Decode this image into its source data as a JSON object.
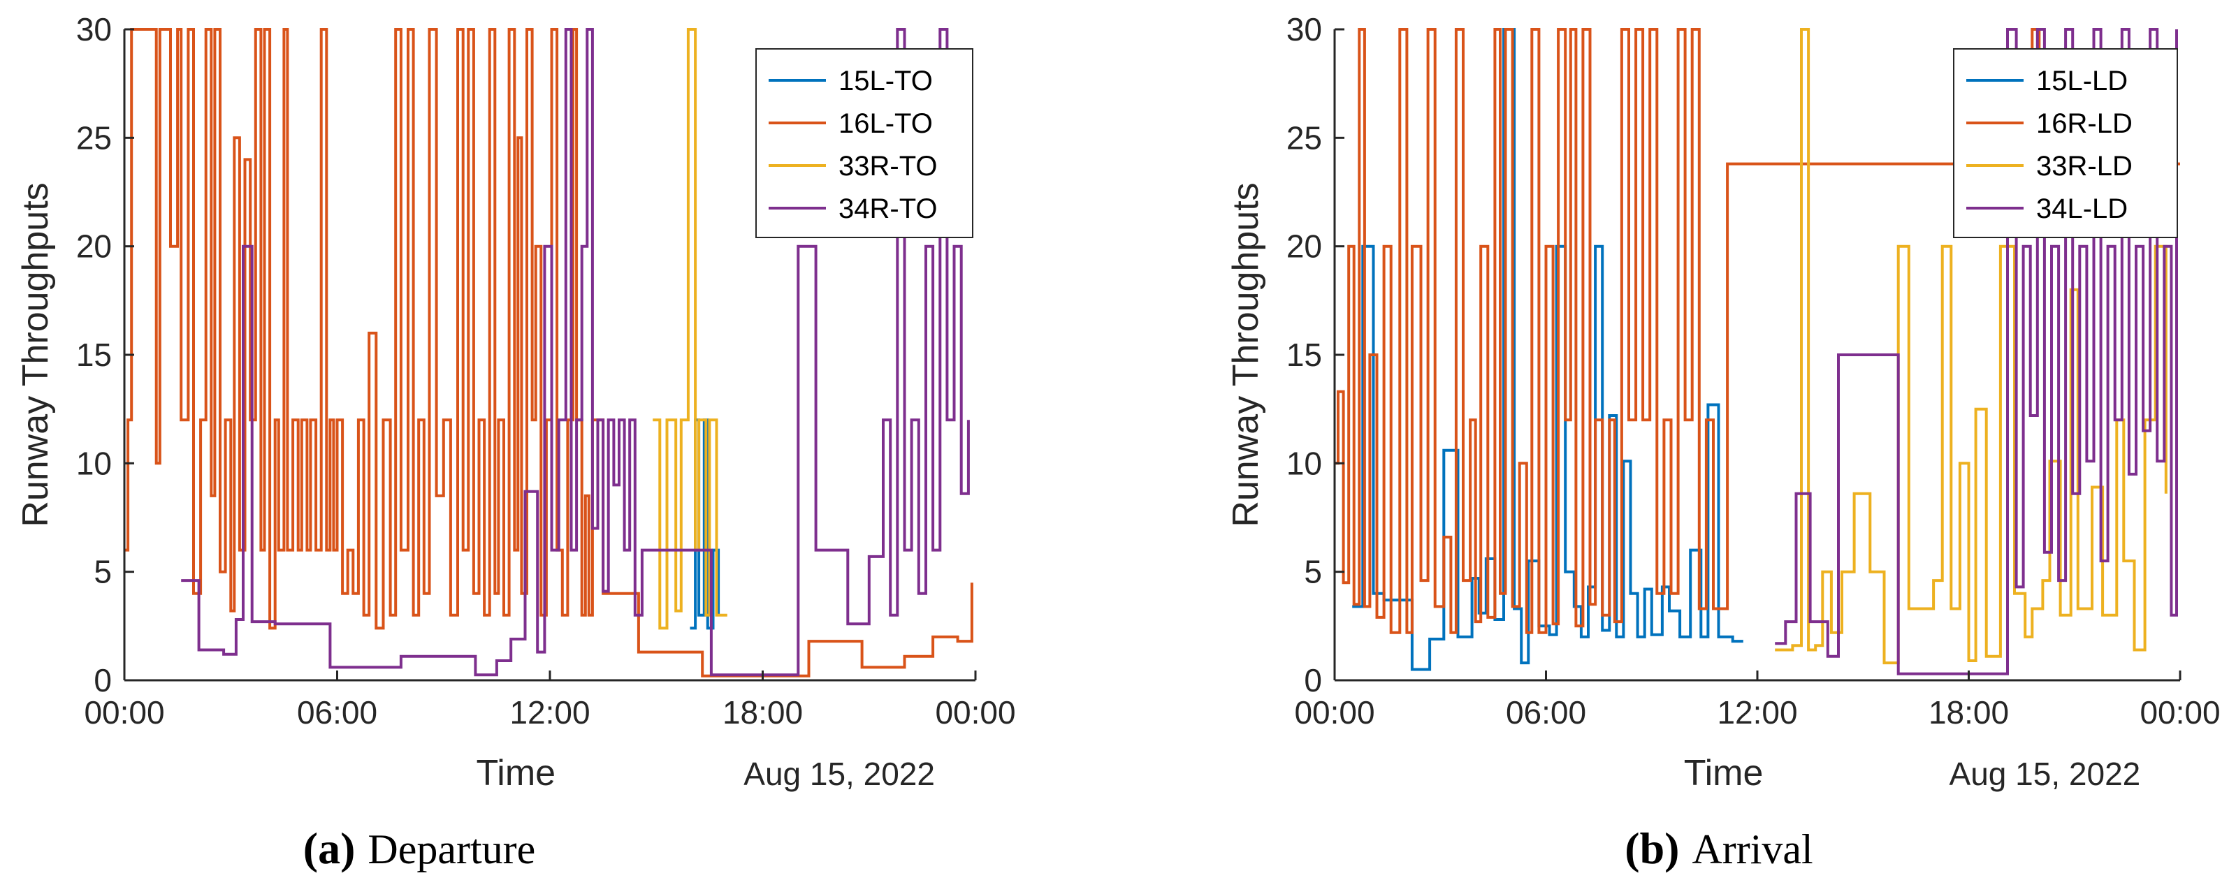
{
  "colors": {
    "c15": "#0072BD",
    "c16": "#D95319",
    "c33": "#EDB120",
    "c34": "#7E2F8E",
    "axis": "#262626"
  },
  "chart_data": [
    {
      "type": "line",
      "step": true,
      "caption_letter": "(a)",
      "caption_text": "Departure",
      "xlabel": "Time",
      "date_label": "Aug 15, 2022",
      "ylabel": "Runway Throughputs",
      "xlim": [
        0,
        24
      ],
      "ylim": [
        0,
        30
      ],
      "xticks": [
        0,
        6,
        12,
        18,
        24
      ],
      "xtick_labels": [
        "00:00",
        "06:00",
        "12:00",
        "18:00",
        "00:00"
      ],
      "yticks": [
        0,
        5,
        10,
        15,
        20,
        25,
        30
      ],
      "ytick_labels": [
        "0",
        "5",
        "10",
        "15",
        "20",
        "25",
        "30"
      ],
      "legend_position": "top-right",
      "series": [
        {
          "name": "15L-TO",
          "color_key": "c15",
          "x": [
            15.95,
            16.1,
            16.2,
            16.35,
            16.45,
            16.6,
            16.75
          ],
          "y": [
            2.4,
            12,
            3,
            12,
            2.4,
            6,
            3
          ]
        },
        {
          "name": "16L-TO",
          "color_key": "c16",
          "x": [
            0.0,
            0.1,
            0.2,
            0.35,
            0.9,
            1.0,
            1.3,
            1.5,
            1.6,
            1.8,
            1.95,
            2.15,
            2.3,
            2.45,
            2.55,
            2.7,
            2.85,
            3.0,
            3.1,
            3.25,
            3.4,
            3.55,
            3.7,
            3.85,
            3.95,
            4.1,
            4.25,
            4.35,
            4.5,
            4.6,
            4.75,
            4.9,
            5.0,
            5.15,
            5.25,
            5.4,
            5.55,
            5.7,
            5.8,
            5.9,
            6.0,
            6.15,
            6.3,
            6.45,
            6.6,
            6.75,
            6.9,
            7.1,
            7.3,
            7.5,
            7.65,
            7.8,
            8.0,
            8.15,
            8.3,
            8.45,
            8.6,
            8.8,
            9.0,
            9.2,
            9.4,
            9.55,
            9.7,
            9.85,
            10.0,
            10.15,
            10.3,
            10.45,
            10.55,
            10.7,
            10.85,
            11.0,
            11.1,
            11.2,
            11.35,
            11.5,
            11.6,
            11.75,
            11.9,
            12.05,
            12.2,
            12.35,
            12.5,
            12.65,
            12.75,
            12.9,
            13.0,
            13.1,
            13.2,
            13.5,
            14.5,
            16.0,
            16.3,
            17.5,
            19.3,
            20.8,
            22.0,
            22.8,
            23.5,
            23.9
          ],
          "y": [
            6,
            12,
            30,
            30,
            10,
            30,
            20,
            30,
            12,
            30,
            4,
            12,
            30,
            8.5,
            30,
            5,
            12,
            3.2,
            25,
            6,
            24,
            12,
            30,
            6,
            30,
            2.4,
            12,
            6,
            30,
            6,
            12,
            6,
            12,
            6,
            12,
            6,
            30,
            6,
            12,
            6,
            12,
            4,
            6,
            4,
            12,
            3,
            16,
            2.4,
            12,
            3,
            30,
            6,
            30,
            3,
            12,
            4,
            30,
            8.5,
            12,
            3,
            30,
            6,
            30,
            4,
            12,
            3,
            30,
            4,
            12,
            3,
            30,
            6,
            25,
            4,
            30,
            12,
            20,
            3,
            12,
            30,
            6,
            3,
            12,
            30,
            12,
            3,
            8.5,
            3,
            12,
            4,
            1.3,
            1.3,
            0.2,
            0.2,
            1.8,
            0.6,
            1.1,
            2.0,
            1.8,
            4.5
          ]
        },
        {
          "name": "33R-TO",
          "color_key": "c33",
          "x": [
            14.9,
            15.1,
            15.3,
            15.55,
            15.7,
            15.9,
            16.1,
            16.2,
            16.4,
            16.5,
            16.7,
            17.0
          ],
          "y": [
            12,
            2.4,
            12,
            3.2,
            12,
            30,
            6,
            12,
            3,
            12,
            3,
            3
          ]
        },
        {
          "name": "34R-TO",
          "color_key": "c34",
          "x": [
            1.6,
            1.9,
            2.1,
            2.8,
            3.15,
            3.35,
            3.6,
            4.0,
            4.25,
            5.8,
            7.8,
            9.9,
            10.5,
            10.9,
            11.3,
            11.65,
            11.85,
            12.05,
            12.25,
            12.45,
            12.6,
            12.75,
            12.9,
            13.05,
            13.2,
            13.35,
            13.5,
            13.65,
            13.8,
            13.95,
            14.1,
            14.25,
            14.4,
            14.6,
            14.8,
            16.3,
            16.55,
            16.8,
            19.0,
            19.5,
            20.4,
            21.0,
            21.4,
            21.6,
            21.8,
            22.0,
            22.2,
            22.4,
            22.6,
            22.8,
            23.0,
            23.2,
            23.4,
            23.6,
            23.8
          ],
          "y": [
            4.6,
            4.6,
            1.4,
            1.2,
            2.8,
            20,
            2.7,
            2.7,
            2.6,
            0.6,
            1.1,
            0.25,
            0.9,
            1.9,
            8.7,
            1.3,
            20,
            6,
            12,
            30,
            6,
            12,
            20,
            30,
            7,
            12,
            4.1,
            12,
            9,
            12,
            6,
            12,
            3,
            6,
            6,
            6,
            0.25,
            0.25,
            20,
            6,
            2.6,
            5.7,
            12,
            3,
            30,
            6,
            12,
            4,
            20,
            6,
            30,
            12,
            20,
            8.6,
            12
          ]
        }
      ]
    },
    {
      "type": "line",
      "step": true,
      "caption_letter": "(b)",
      "caption_text": "Arrival",
      "xlabel": "Time",
      "date_label": "Aug 15, 2022",
      "ylabel": "Runway Throughputs",
      "xlim": [
        0,
        24
      ],
      "ylim": [
        0,
        30
      ],
      "xticks": [
        0,
        6,
        12,
        18,
        24
      ],
      "xtick_labels": [
        "00:00",
        "06:00",
        "12:00",
        "18:00",
        "00:00"
      ],
      "yticks": [
        0,
        5,
        10,
        15,
        20,
        25,
        30
      ],
      "ytick_labels": [
        "0",
        "5",
        "10",
        "15",
        "20",
        "25",
        "30"
      ],
      "legend_position": "top-right",
      "series": [
        {
          "name": "15L-LD",
          "color_key": "c15",
          "x": [
            0.5,
            0.8,
            1.1,
            1.4,
            1.6,
            2.2,
            2.7,
            3.1,
            3.5,
            3.9,
            4.1,
            4.3,
            4.55,
            4.8,
            5.1,
            5.3,
            5.5,
            5.8,
            6.1,
            6.3,
            6.55,
            6.8,
            7.0,
            7.2,
            7.4,
            7.6,
            7.8,
            8.0,
            8.2,
            8.4,
            8.6,
            8.8,
            9.0,
            9.3,
            9.5,
            9.8,
            10.1,
            10.4,
            10.6,
            10.9,
            11.3,
            11.6
          ],
          "y": [
            3.4,
            20,
            4.0,
            3.7,
            3.7,
            0.5,
            1.9,
            10.6,
            2.0,
            4.7,
            3.1,
            5.6,
            2.8,
            30,
            3.3,
            0.8,
            5.5,
            2.5,
            2.1,
            20,
            5.0,
            3.4,
            2.0,
            4.3,
            20,
            2.3,
            12.2,
            2.0,
            10.1,
            4.0,
            2.0,
            4.2,
            2.1,
            4.3,
            3.2,
            2.0,
            6.0,
            2.0,
            12.7,
            2.0,
            1.8,
            1.8
          ]
        },
        {
          "name": "16R-LD",
          "color_key": "c16",
          "x": [
            0.0,
            0.1,
            0.25,
            0.4,
            0.55,
            0.7,
            0.85,
            1.0,
            1.2,
            1.4,
            1.6,
            1.85,
            2.05,
            2.2,
            2.45,
            2.65,
            2.85,
            3.1,
            3.3,
            3.45,
            3.65,
            3.85,
            4.0,
            4.15,
            4.35,
            4.55,
            4.7,
            4.85,
            5.05,
            5.25,
            5.45,
            5.6,
            5.8,
            6.0,
            6.2,
            6.35,
            6.55,
            6.7,
            6.85,
            7.05,
            7.25,
            7.4,
            7.6,
            7.8,
            7.95,
            8.15,
            8.35,
            8.55,
            8.75,
            8.95,
            9.15,
            9.35,
            9.55,
            9.75,
            9.95,
            10.15,
            10.35,
            10.55,
            10.75,
            10.95,
            11.15,
            11.4,
            11.6,
            11.8,
            12.0,
            19.8,
            20.0,
            24.0
          ],
          "y": [
            10,
            13.3,
            4.5,
            20,
            3.5,
            30,
            3.4,
            15,
            2.9,
            20,
            2.2,
            30,
            2.2,
            20,
            4.6,
            30,
            3.4,
            6.6,
            2.2,
            30,
            4.6,
            12,
            2.7,
            20,
            2.9,
            30,
            4.0,
            30,
            3.4,
            10,
            2.2,
            30,
            2.2,
            20,
            2.6,
            30,
            12,
            30,
            2.5,
            30,
            3.5,
            12,
            3.0,
            12,
            2.7,
            30,
            12,
            30,
            12,
            30,
            4.0,
            12,
            4.0,
            30,
            12,
            30,
            3.3,
            12,
            3.3,
            3.3,
            23.8,
            23.8,
            23.8,
            23.8,
            23.8,
            30,
            23.8,
            23.8
          ]
        },
        {
          "name": "33R-LD",
          "color_key": "c33",
          "x": [
            12.5,
            13.0,
            13.25,
            13.45,
            13.65,
            13.85,
            14.1,
            14.4,
            14.75,
            15.2,
            15.6,
            16.0,
            16.3,
            17.0,
            17.25,
            17.5,
            17.75,
            18.0,
            18.2,
            18.5,
            18.9,
            19.3,
            19.6,
            19.8,
            20.1,
            20.3,
            20.6,
            20.9,
            21.1,
            21.5,
            21.8,
            22.2,
            22.4,
            22.7,
            23.0,
            23.3,
            23.6
          ],
          "y": [
            1.4,
            1.6,
            30,
            1.4,
            1.6,
            5.0,
            2.2,
            5.0,
            8.6,
            5.0,
            0.8,
            20,
            3.3,
            4.6,
            20,
            3.3,
            10,
            0.9,
            12.5,
            1.1,
            20,
            4.0,
            2.0,
            3.3,
            4.6,
            10.1,
            3.0,
            18,
            3.3,
            8.9,
            3.0,
            12,
            5.5,
            1.4,
            12,
            20,
            8.6
          ]
        },
        {
          "name": "34L-LD",
          "color_key": "c34",
          "x": [
            12.5,
            12.8,
            13.1,
            13.5,
            14.0,
            14.3,
            15.1,
            16.0,
            16.5,
            17.5,
            18.0,
            19.1,
            19.35,
            19.55,
            19.75,
            19.95,
            20.15,
            20.35,
            20.55,
            20.75,
            20.95,
            21.15,
            21.35,
            21.55,
            21.75,
            21.95,
            22.15,
            22.35,
            22.55,
            22.75,
            22.95,
            23.15,
            23.35,
            23.55,
            23.75,
            23.9
          ],
          "y": [
            1.7,
            2.7,
            8.6,
            2.7,
            1.1,
            15,
            15,
            0.3,
            0.3,
            0.3,
            0.3,
            30,
            4.3,
            20,
            12.2,
            30,
            5.9,
            20,
            4.6,
            30,
            8.6,
            20,
            10.1,
            30,
            5.5,
            20,
            12,
            30,
            9.5,
            20,
            11.5,
            30,
            10.1,
            20,
            3.0,
            30
          ]
        }
      ]
    }
  ]
}
